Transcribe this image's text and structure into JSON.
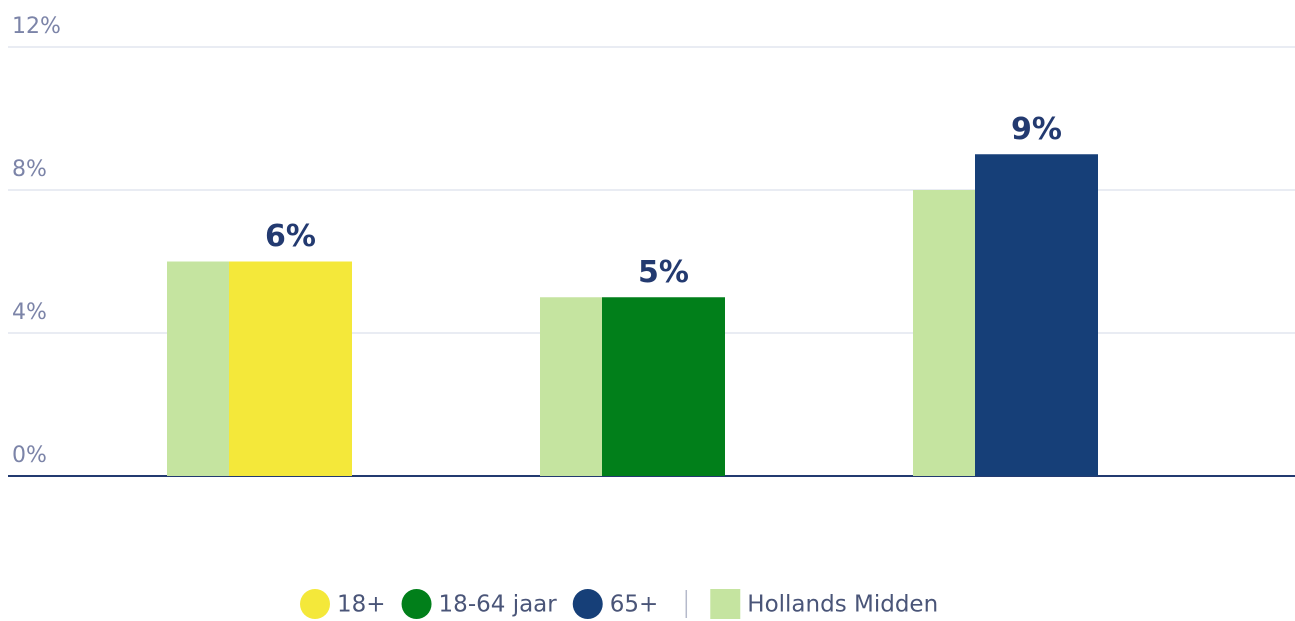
{
  "chart_data": {
    "type": "bar",
    "categories": [
      null,
      null,
      null
    ],
    "series": [
      {
        "name": "18+",
        "color": "#f4e83a",
        "values": [
          6,
          null,
          null
        ],
        "value_labels": [
          "6%",
          null,
          null
        ]
      },
      {
        "name": "18-64 jaar",
        "color": "#017f1a",
        "values": [
          null,
          5,
          null
        ],
        "value_labels": [
          null,
          "5%",
          null
        ]
      },
      {
        "name": "65+",
        "color": "#163f78",
        "values": [
          null,
          null,
          9
        ],
        "value_labels": [
          null,
          null,
          "9%"
        ]
      },
      {
        "name": "Hollands Midden",
        "color": "#c5e4a0",
        "values": [
          6,
          5,
          8
        ]
      }
    ],
    "ylim": [
      0,
      12
    ],
    "yticks": [
      {
        "value": 0,
        "label": "0%"
      },
      {
        "value": 4,
        "label": "4%"
      },
      {
        "value": 8,
        "label": "8%"
      },
      {
        "value": 12,
        "label": "12%"
      }
    ],
    "grid": true
  }
}
